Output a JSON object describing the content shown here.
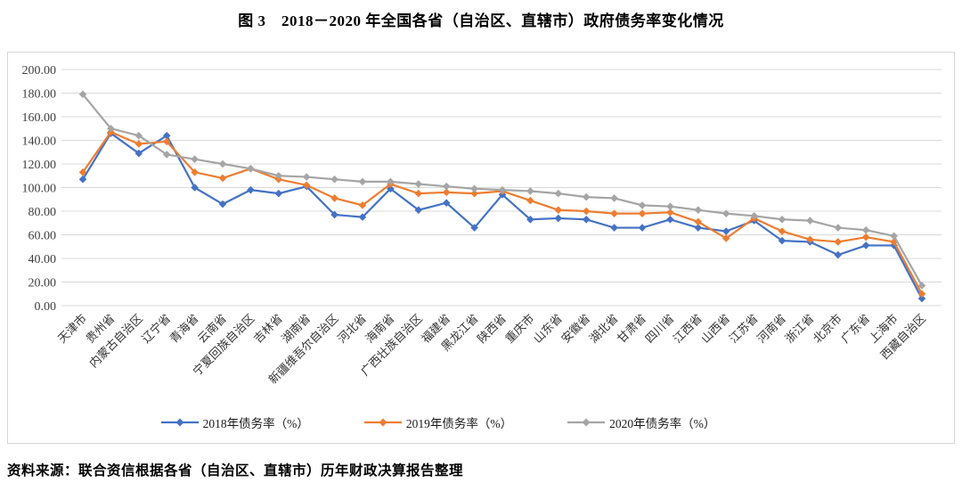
{
  "title": "图 3　2018－2020 年全国各省（自治区、直辖市）政府债务率变化情况",
  "source": "资料来源：联合资信根据各省（自治区、直辖市）历年财政决算报告整理",
  "colors": {
    "series_2018": "#4472C4",
    "series_2019": "#ED7D31",
    "series_2020": "#A5A5A5",
    "gridline": "#d9d9d9",
    "frame_border": "#d6d6d6",
    "axis_text": "#404040"
  },
  "chart_data": {
    "type": "line",
    "marker": "diamond",
    "grid": "horizontal",
    "legend_position": "bottom",
    "ylim": [
      0,
      200
    ],
    "ytick_step": 20,
    "ytick_labels": [
      "0.00",
      "20.00",
      "40.00",
      "60.00",
      "80.00",
      "100.00",
      "120.00",
      "140.00",
      "160.00",
      "180.00",
      "200.00"
    ],
    "categories": [
      "天津市",
      "贵州省",
      "内蒙古自治区",
      "辽宁省",
      "青海省",
      "云南省",
      "宁夏回族自治区",
      "吉林省",
      "湖南省",
      "新疆维吾尔自治区",
      "河北省",
      "海南省",
      "广西壮族自治区",
      "福建省",
      "黑龙江省",
      "陕西省",
      "重庆市",
      "山东省",
      "安徽省",
      "湖北省",
      "甘肃省",
      "四川省",
      "江西省",
      "山西省",
      "江苏省",
      "河南省",
      "浙江省",
      "北京市",
      "广东省",
      "上海市",
      "西藏自治区"
    ],
    "series": [
      {
        "name": "2018年债务率（%）",
        "color": "#4472C4",
        "values": [
          107,
          146,
          129,
          144,
          100,
          86,
          98,
          95,
          101,
          77,
          75,
          99,
          81,
          87,
          66,
          94,
          73,
          74,
          73,
          66,
          66,
          73,
          66,
          63,
          72,
          55,
          54,
          43,
          51,
          51,
          6
        ]
      },
      {
        "name": "2019年债务率（%）",
        "color": "#ED7D31",
        "values": [
          113,
          147,
          137,
          139,
          113,
          108,
          116,
          107,
          102,
          91,
          85,
          103,
          95,
          96,
          95,
          97,
          89,
          81,
          80,
          78,
          78,
          79,
          71,
          57,
          74,
          63,
          56,
          54,
          58,
          54,
          10
        ]
      },
      {
        "name": "2020年债务率（%）",
        "color": "#A5A5A5",
        "values": [
          179,
          150,
          144,
          128,
          124,
          120,
          116,
          110,
          109,
          107,
          105,
          105,
          103,
          101,
          99,
          98,
          97,
          95,
          92,
          91,
          85,
          84,
          81,
          78,
          76,
          73,
          72,
          66,
          64,
          59,
          17
        ]
      }
    ]
  }
}
